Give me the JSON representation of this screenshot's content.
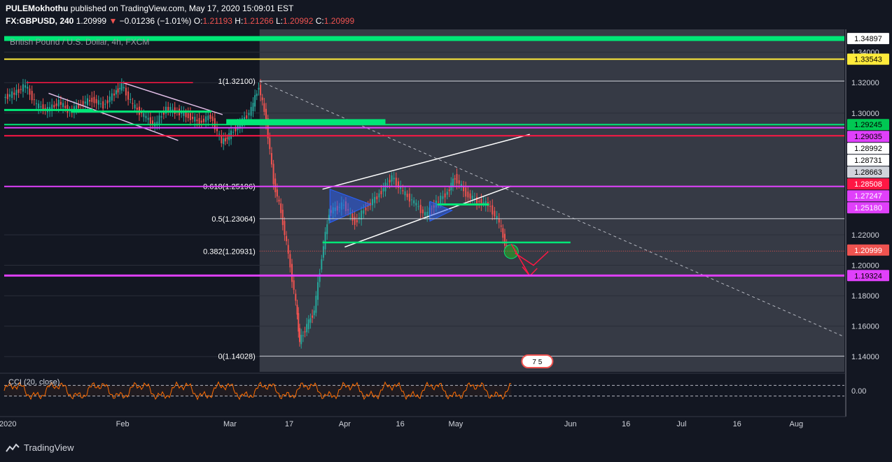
{
  "header": {
    "author": "PULEMokhothu",
    "published_text": "published on TradingView.com, May 17, 2020 15:09:01 EST",
    "symbol": "FX:GBPUSD, 240",
    "last_price": "1.20999",
    "change": "−0.01236 (−1.01%)",
    "open_label": "O:",
    "open": "1.21193",
    "high_label": "H:",
    "high": "1.21266",
    "low_label": "L:",
    "low": "1.20992",
    "close_label": "C:",
    "close": "1.20999"
  },
  "footer": {
    "brand": "TradingView"
  },
  "chart_data": {
    "type": "candlestick",
    "title": "British Pound / U.S. Dollar, 4h, FXCM",
    "ylim": [
      1.13,
      1.355
    ],
    "y_ticks": [
      1.14,
      1.16,
      1.18,
      1.2,
      1.22,
      1.3,
      1.32,
      1.34
    ],
    "y_tick_labels": [
      "1.14000",
      "1.16000",
      "1.18000",
      "1.20000",
      "1.22000",
      "1.30000",
      "1.32000",
      "1.34000"
    ],
    "x_ticks": [
      "2020",
      "Feb",
      "Mar",
      "17",
      "Apr",
      "16",
      "May",
      "Jun",
      "16",
      "Jul",
      "16",
      "Aug"
    ],
    "x_tick_dates": [
      "2020-01-01",
      "2020-02-01",
      "2020-03-01",
      "2020-03-17",
      "2020-04-01",
      "2020-04-16",
      "2020-05-01",
      "2020-06-01",
      "2020-06-16",
      "2020-07-01",
      "2020-07-16",
      "2020-08-01"
    ],
    "x_range": [
      "2019-12-31",
      "2020-08-14"
    ],
    "close_series": [
      [
        "2019-12-31",
        1.31
      ],
      [
        "2020-01-03",
        1.313
      ],
      [
        "2020-01-06",
        1.318
      ],
      [
        "2020-01-09",
        1.305
      ],
      [
        "2020-01-12",
        1.302
      ],
      [
        "2020-01-15",
        1.307
      ],
      [
        "2020-01-18",
        1.301
      ],
      [
        "2020-01-21",
        1.306
      ],
      [
        "2020-01-24",
        1.309
      ],
      [
        "2020-01-27",
        1.305
      ],
      [
        "2020-01-30",
        1.313
      ],
      [
        "2020-02-01",
        1.318
      ],
      [
        "2020-02-04",
        1.305
      ],
      [
        "2020-02-07",
        1.298
      ],
      [
        "2020-02-10",
        1.292
      ],
      [
        "2020-02-13",
        1.303
      ],
      [
        "2020-02-16",
        1.301
      ],
      [
        "2020-02-19",
        1.298
      ],
      [
        "2020-02-22",
        1.294
      ],
      [
        "2020-02-25",
        1.298
      ],
      [
        "2020-02-28",
        1.281
      ],
      [
        "2020-03-01",
        1.285
      ],
      [
        "2020-03-04",
        1.293
      ],
      [
        "2020-03-07",
        1.302
      ],
      [
        "2020-03-09",
        1.318
      ],
      [
        "2020-03-11",
        1.295
      ],
      [
        "2020-03-13",
        1.255
      ],
      [
        "2020-03-15",
        1.235
      ],
      [
        "2020-03-17",
        1.207
      ],
      [
        "2020-03-19",
        1.175
      ],
      [
        "2020-03-20",
        1.15
      ],
      [
        "2020-03-22",
        1.16
      ],
      [
        "2020-03-24",
        1.17
      ],
      [
        "2020-03-26",
        1.205
      ],
      [
        "2020-03-28",
        1.235
      ],
      [
        "2020-04-01",
        1.24
      ],
      [
        "2020-04-04",
        1.228
      ],
      [
        "2020-04-07",
        1.238
      ],
      [
        "2020-04-10",
        1.245
      ],
      [
        "2020-04-14",
        1.258
      ],
      [
        "2020-04-17",
        1.248
      ],
      [
        "2020-04-20",
        1.241
      ],
      [
        "2020-04-23",
        1.233
      ],
      [
        "2020-04-26",
        1.241
      ],
      [
        "2020-04-29",
        1.248
      ],
      [
        "2020-05-01",
        1.258
      ],
      [
        "2020-05-04",
        1.247
      ],
      [
        "2020-05-07",
        1.242
      ],
      [
        "2020-05-10",
        1.24
      ],
      [
        "2020-05-13",
        1.228
      ],
      [
        "2020-05-15",
        1.21
      ]
    ],
    "horizontal_levels": [
      {
        "price": 1.34897,
        "label": "1.34897"
      },
      {
        "price": 1.33543,
        "label": "1.33543"
      },
      {
        "price": 1.29245,
        "label": "1.29245"
      },
      {
        "price": 1.29035,
        "label": "1.29035"
      },
      {
        "price": 1.28992,
        "label": "1.28992"
      },
      {
        "price": 1.28731,
        "label": "1.28731"
      },
      {
        "price": 1.28663,
        "label": "1.28663"
      },
      {
        "price": 1.28508,
        "label": "1.28508"
      },
      {
        "price": 1.27247,
        "label": "1.27247"
      },
      {
        "price": 1.2518,
        "label": "1.25180"
      },
      {
        "price": 1.20999,
        "label": "1.20999"
      },
      {
        "price": 1.19324,
        "label": "1.19324"
      }
    ],
    "fib_levels": [
      {
        "ratio": "1",
        "price": 1.321,
        "label": "1(1.32100)"
      },
      {
        "ratio": "0.618",
        "price": 1.25196,
        "label": "0.618(1.25196)"
      },
      {
        "ratio": "0.5",
        "price": 1.23064,
        "label": "0.5(1.23064)"
      },
      {
        "ratio": "0.382",
        "price": 1.20931,
        "label": "0.382(1.20931)"
      },
      {
        "ratio": "0",
        "price": 1.14028,
        "label": "0(1.14028)"
      }
    ],
    "indicator": {
      "name": "CCI (20, close)",
      "ylim": [
        -300,
        300
      ],
      "y_tick_label": "0.00",
      "color": "#ff6d00"
    },
    "colors": {
      "background": "#131722",
      "fib_zone": "#363a45",
      "green_level": "#00e676",
      "magenta_level": "#e040fb",
      "yellow_level": "#ffeb3b",
      "red_level": "#ff1744",
      "current_price_tag": "#ef5350",
      "candle_up": "#26a69a",
      "candle_down": "#ef5350"
    },
    "badge": {
      "text": "7 5"
    }
  }
}
